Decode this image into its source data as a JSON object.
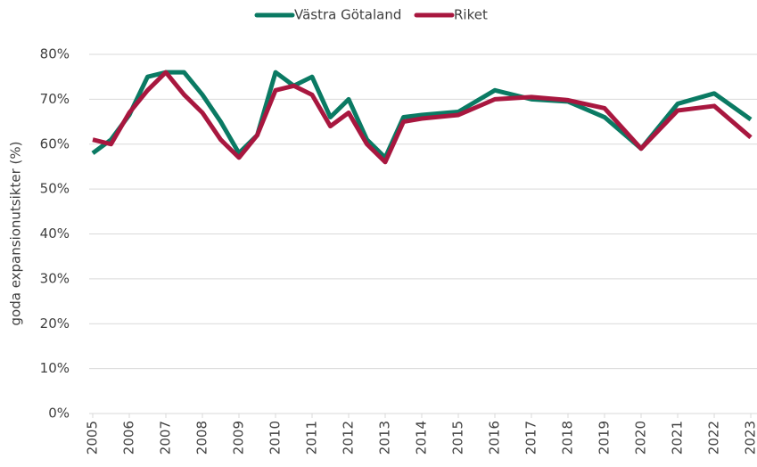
{
  "chart_data": {
    "type": "line",
    "y_axis_label": "goda expansionutsikter (%)",
    "x": [
      2005,
      2005.5,
      2006,
      2006.5,
      2007,
      2007.5,
      2008,
      2008.5,
      2009,
      2009.5,
      2010,
      2010.5,
      2011,
      2011.5,
      2012,
      2012.5,
      2013,
      2013.5,
      2014,
      2015,
      2016,
      2017,
      2018,
      2019,
      2020,
      2021,
      2022,
      2023
    ],
    "series": [
      {
        "name": "Västra Götaland",
        "color": "#0a7a63",
        "values": [
          58,
          61,
          66.5,
          75,
          76,
          76,
          71,
          65,
          58,
          62,
          76,
          73,
          75,
          66,
          70,
          61,
          57,
          66,
          66.5,
          67.2,
          72,
          70,
          69.5,
          66,
          59,
          69,
          71.3,
          65.5
        ]
      },
      {
        "name": "Riket",
        "color": "#a8173f",
        "values": [
          61,
          60,
          67,
          72,
          76,
          71,
          67,
          61,
          57,
          62,
          72,
          73,
          71,
          64,
          67,
          60,
          56,
          65,
          65.7,
          66.5,
          70,
          70.5,
          69.8,
          68,
          59,
          67.5,
          68.5,
          61.5
        ]
      }
    ],
    "xlim": [
      2005,
      2023.17
    ],
    "xticks": [
      2005,
      2006,
      2007,
      2008,
      2009,
      2010,
      2011,
      2012,
      2013,
      2014,
      2015,
      2016,
      2017,
      2018,
      2019,
      2020,
      2021,
      2022,
      2023
    ],
    "ylim": [
      0,
      80
    ],
    "yticks": [
      {
        "value": 0,
        "label": "0%"
      },
      {
        "value": 10,
        "label": "10%"
      },
      {
        "value": 20,
        "label": "20%"
      },
      {
        "value": 30,
        "label": "30%"
      },
      {
        "value": 40,
        "label": "40%"
      },
      {
        "value": 50,
        "label": "50%"
      },
      {
        "value": 60,
        "label": "60%"
      },
      {
        "value": 70,
        "label": "70%"
      },
      {
        "value": 80,
        "label": "80%"
      }
    ],
    "grid": true,
    "legend": "top"
  }
}
